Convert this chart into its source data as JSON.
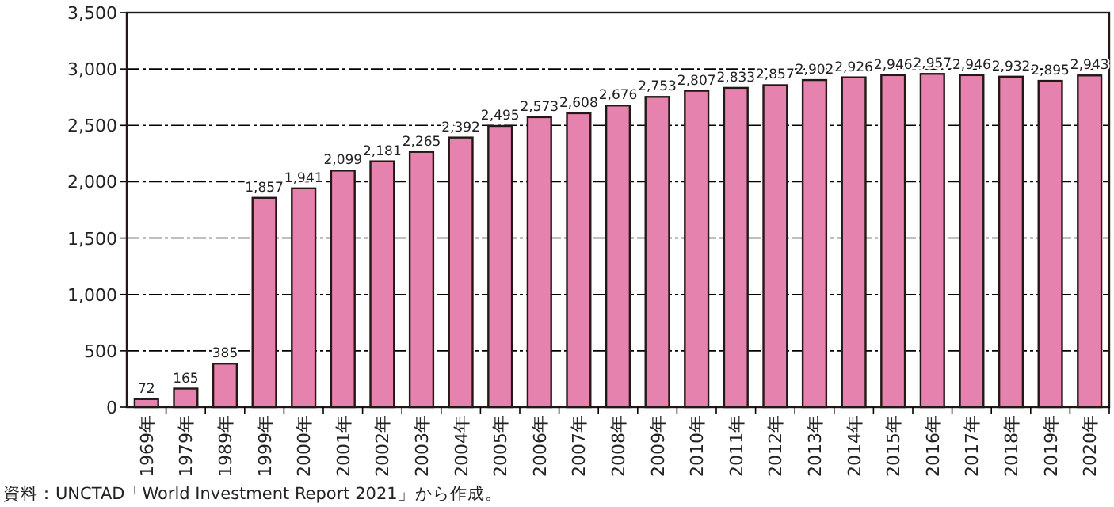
{
  "chart_data": {
    "type": "bar",
    "categories": [
      "1969年",
      "1979年",
      "1989年",
      "1999年",
      "2000年",
      "2001年",
      "2002年",
      "2003年",
      "2004年",
      "2005年",
      "2006年",
      "2007年",
      "2008年",
      "2009年",
      "2010年",
      "2011年",
      "2012年",
      "2013年",
      "2014年",
      "2015年",
      "2016年",
      "2017年",
      "2018年",
      "2019年",
      "2020年"
    ],
    "values": [
      72,
      165,
      385,
      1857,
      1941,
      2099,
      2181,
      2265,
      2392,
      2495,
      2573,
      2608,
      2676,
      2753,
      2807,
      2833,
      2857,
      2902,
      2926,
      2946,
      2957,
      2946,
      2932,
      2895,
      2943
    ],
    "color": "#e682ae",
    "ylim": [
      0,
      3500
    ],
    "yticks": [
      0,
      500,
      {
        "value": 1000,
        "label": "1,000"
      },
      {
        "value": 1500,
        "label": "1,500"
      },
      {
        "value": 2000,
        "label": "2,000"
      },
      {
        "value": 2500,
        "label": "2,500"
      },
      {
        "value": 3000,
        "label": "3,000"
      },
      {
        "value": 3500,
        "label": "3,500"
      }
    ],
    "grid": "y",
    "value_labels": [
      "72",
      "165",
      "385",
      "1,857",
      "1,941",
      "2,099",
      "2,181",
      "2,265",
      "2,392",
      "2,495",
      "2,573",
      "2,608",
      "2,676",
      "2,753",
      "2,807",
      "2,833",
      "2,857",
      "2,902",
      "2,926",
      "2,946",
      "2,957",
      "2,946",
      "2,932",
      "2,895",
      "2,943"
    ],
    "annotations": [
      "資料：UNCTAD「World Investment Report 2021」から作成。"
    ]
  }
}
